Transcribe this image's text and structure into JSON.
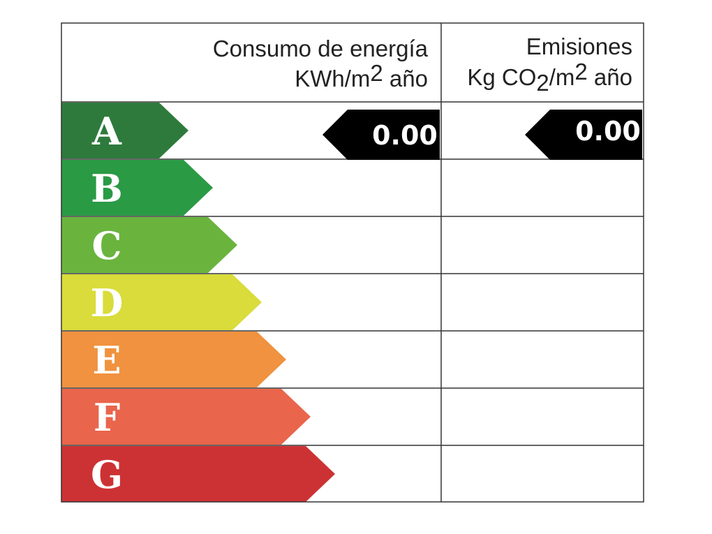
{
  "header": {
    "energy": {
      "title": "Consumo de energía",
      "units": [
        "KWh/m",
        "2",
        " año"
      ]
    },
    "emissions": {
      "title": "Emisiones",
      "units": [
        "Kg CO",
        "2",
        "/m",
        "2",
        " año"
      ]
    }
  },
  "ratings": [
    {
      "letter": "A",
      "color": "#2e7a3c"
    },
    {
      "letter": "B",
      "color": "#2a9a45"
    },
    {
      "letter": "C",
      "color": "#6ab43e"
    },
    {
      "letter": "D",
      "color": "#d9dc3a"
    },
    {
      "letter": "E",
      "color": "#f0923f"
    },
    {
      "letter": "F",
      "color": "#e9654b"
    },
    {
      "letter": "G",
      "color": "#cc3234"
    }
  ],
  "energy_value": "0.00",
  "emissions_value": "0.00"
}
